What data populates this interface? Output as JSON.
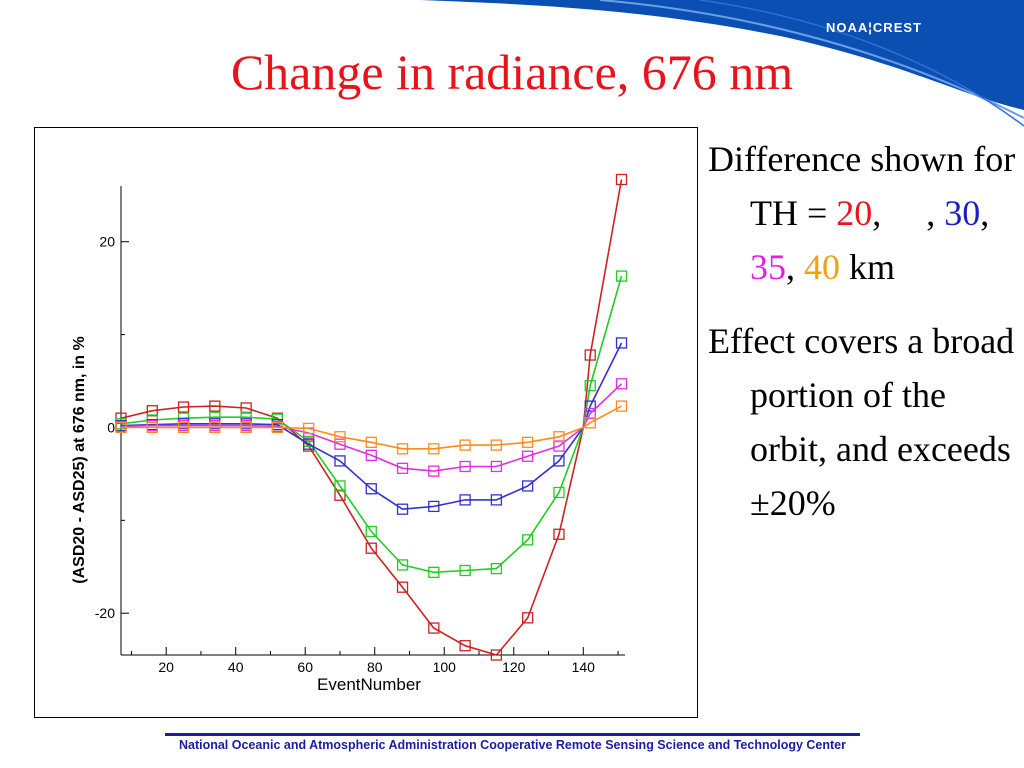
{
  "header": {
    "logo_text": "NOAA¦CREST",
    "title": "Change in radiance, 676 nm",
    "brand_color": "#0b4fb3"
  },
  "bullets": {
    "item1": {
      "text_before": "Difference shown for TH = ",
      "values": [
        {
          "text": "20",
          "color": "#e8141c"
        },
        {
          "text": "30",
          "color": "#1c1cc8"
        },
        {
          "text": "35",
          "color": "#e81ce8"
        },
        {
          "text": "40",
          "color": "#f0a010"
        }
      ],
      "sep1": ",     , ",
      "sep2": ",",
      "sep3": ", ",
      "unit": " km"
    },
    "item2": "Effect covers a broad portion of the orbit, and exceeds ±20%"
  },
  "footer": "National Oceanic and Atmospheric Administration Cooperative Remote Sensing Science and Technology Center",
  "chart_data": {
    "type": "line",
    "title": "",
    "xlabel": "EventNumber",
    "ylabel": "(ASD20 - ASD25) at 676 nm, in %",
    "xlim": [
      7,
      152
    ],
    "ylim": [
      -24.5,
      26
    ],
    "xticks": [
      20,
      40,
      60,
      80,
      100,
      120,
      140
    ],
    "yticks": [
      20,
      0,
      -20
    ],
    "x": [
      7,
      16,
      25,
      34,
      43,
      52,
      61,
      70,
      79,
      88,
      97,
      106,
      115,
      124,
      133,
      140,
      142,
      151
    ],
    "series": [
      {
        "color": "#cc2222",
        "values": [
          1.0,
          1.8,
          2.2,
          2.3,
          2.1,
          1.0,
          -2.0,
          -7.3,
          -13.0,
          -17.2,
          -21.6,
          -23.5,
          -24.5,
          -20.5,
          -11.5,
          0,
          7.8,
          26.7
        ]
      },
      {
        "color": "#22cc22",
        "values": [
          0.4,
          0.8,
          1.0,
          1.1,
          1.1,
          0.9,
          -1.5,
          -6.3,
          -11.2,
          -14.8,
          -15.6,
          -15.4,
          -15.2,
          -12.1,
          -7.0,
          0,
          4.5,
          16.3
        ]
      },
      {
        "color": "#3333cc",
        "values": [
          0.2,
          0.3,
          0.4,
          0.4,
          0.4,
          0.3,
          -1.8,
          -3.6,
          -6.6,
          -8.8,
          -8.5,
          -7.8,
          -7.8,
          -6.3,
          -3.6,
          0,
          2.3,
          9.1
        ]
      },
      {
        "color": "#e030e0",
        "values": [
          0.1,
          0.2,
          0.2,
          0.2,
          0.2,
          0.1,
          -0.6,
          -1.8,
          -3.0,
          -4.4,
          -4.7,
          -4.2,
          -4.2,
          -3.1,
          -2.0,
          0,
          1.5,
          4.7
        ]
      },
      {
        "color": "#ff8c1a",
        "values": [
          0.0,
          0.0,
          0.0,
          0.0,
          0.0,
          0.0,
          -0.1,
          -1.0,
          -1.6,
          -2.3,
          -2.3,
          -1.9,
          -1.9,
          -1.6,
          -1.0,
          0,
          0.5,
          2.3
        ]
      }
    ]
  }
}
